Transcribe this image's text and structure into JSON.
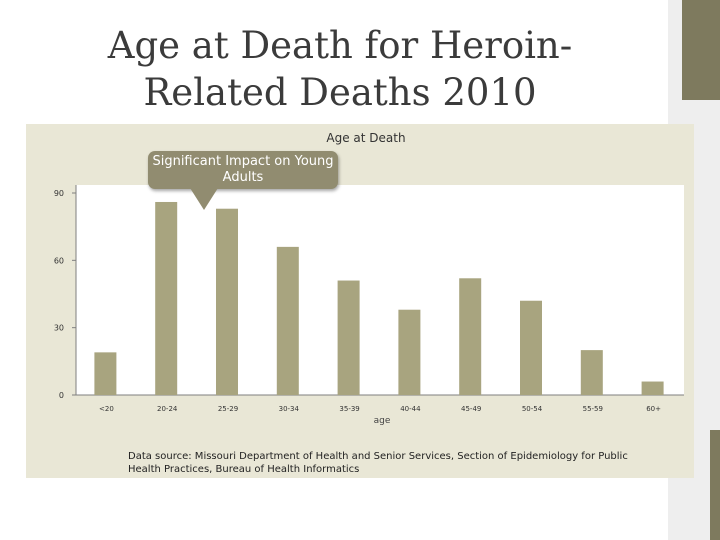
{
  "slide": {
    "title": "Age at Death for Heroin-Related Deaths 2010"
  },
  "colors": {
    "bar": "#a8a47f",
    "panel": "#e9e7d6",
    "callout": "#918c70",
    "accent_dark": "#7e7a5e"
  },
  "callout": {
    "text": "Significant Impact on Young Adults"
  },
  "source_note": "Data source:  Missouri Department of Health and Senior Services, Section of Epidemiology for Public Health Practices, Bureau of Health Informatics",
  "chart_data": {
    "type": "bar",
    "title": "Age at Death",
    "xlabel": "age",
    "ylabel": "",
    "categories": [
      "<20",
      "20-24",
      "25-29",
      "30-34",
      "35-39",
      "40-44",
      "45-49",
      "50-54",
      "55-59",
      "60+"
    ],
    "values": [
      19,
      86,
      83,
      66,
      51,
      38,
      52,
      42,
      20,
      6
    ],
    "ylim": [
      0,
      90
    ],
    "yticks": [
      0,
      30,
      60,
      90
    ],
    "grid": false,
    "legend": "none"
  }
}
